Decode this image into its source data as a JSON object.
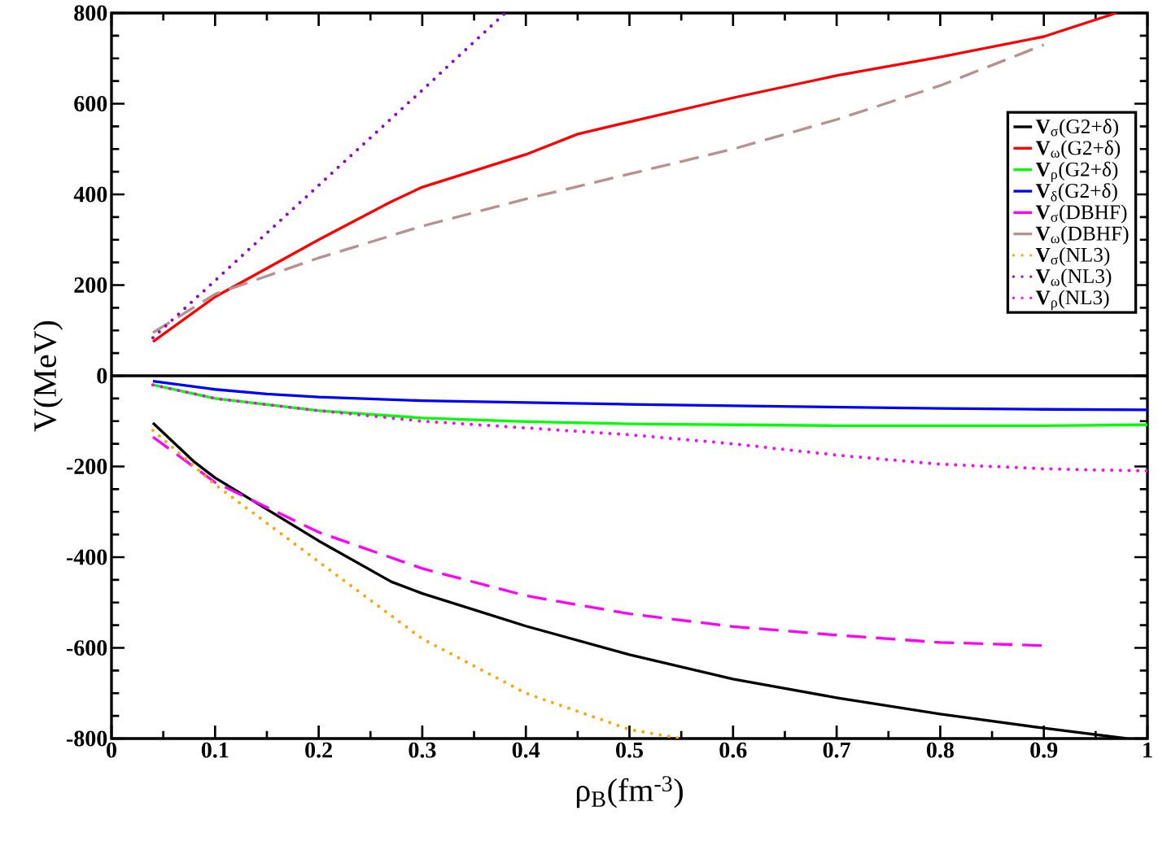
{
  "chart_data": {
    "type": "line",
    "xlabel": "ρ$_{B}$(fm$^{-3}$)",
    "ylabel": "V(MeV)",
    "xlim": [
      0,
      1
    ],
    "ylim": [
      -800,
      800
    ],
    "xticks": [
      0,
      0.1,
      0.2,
      0.3,
      0.4,
      0.5,
      0.6,
      0.7,
      0.8,
      0.9,
      1
    ],
    "yticks": [
      -800,
      -600,
      -400,
      -200,
      0,
      200,
      400,
      600,
      800
    ],
    "legend": "top right",
    "ref_lines": [
      {
        "axis": "y",
        "value": 0,
        "color": "#000000",
        "line_style": "solid"
      }
    ],
    "series": [
      {
        "name": "**V**$_{σ}$(G2+δ)",
        "color": "#000000",
        "line_style": "solid",
        "x": [
          0.04,
          0.08,
          0.1,
          0.2,
          0.27,
          0.3,
          0.4,
          0.5,
          0.6,
          0.7,
          0.8,
          0.9,
          0.98
        ],
        "values": [
          -104,
          -190,
          -225,
          -364,
          -454,
          -480,
          -552,
          -615,
          -669,
          -710,
          -746,
          -777,
          -800
        ]
      },
      {
        "name": "**V**$_{ω}$(G2+δ)",
        "color": "#ff0000",
        "line_style": "solid",
        "x": [
          0.04,
          0.1,
          0.2,
          0.27,
          0.3,
          0.4,
          0.45,
          0.5,
          0.6,
          0.7,
          0.8,
          0.9,
          0.97
        ],
        "values": [
          75,
          174,
          300,
          384,
          416,
          488,
          533,
          560,
          613,
          662,
          703,
          748,
          800
        ]
      },
      {
        "name": "**V**$_{ρ}$(G2+δ)",
        "color": "#00ff00",
        "line_style": "solid",
        "x": [
          0.04,
          0.1,
          0.2,
          0.3,
          0.4,
          0.5,
          0.6,
          0.7,
          0.8,
          0.9,
          1.0
        ],
        "values": [
          -20,
          -50,
          -77,
          -93,
          -101,
          -106,
          -108,
          -110,
          -110,
          -110,
          -108
        ]
      },
      {
        "name": "**V**$_{δ}$(G2+δ)",
        "color": "#0000ff",
        "line_style": "solid",
        "x": [
          0.04,
          0.1,
          0.15,
          0.2,
          0.3,
          0.4,
          0.5,
          0.6,
          0.7,
          0.8,
          0.9,
          1.0
        ],
        "values": [
          -12,
          -30,
          -40,
          -47,
          -55,
          -59,
          -63,
          -66,
          -69,
          -72,
          -74,
          -75
        ]
      },
      {
        "name": "**V**$_{σ}$(DBHF)",
        "color": "#ff00ff",
        "line_style": "dashed",
        "x": [
          0.04,
          0.1,
          0.2,
          0.3,
          0.4,
          0.5,
          0.6,
          0.7,
          0.8,
          0.9
        ],
        "values": [
          -135,
          -235,
          -345,
          -425,
          -485,
          -525,
          -553,
          -572,
          -588,
          -595
        ]
      },
      {
        "name": "**V**$_{ω}$(DBHF)",
        "color": "#bc8f8f",
        "line_style": "dashed",
        "x": [
          0.04,
          0.1,
          0.2,
          0.3,
          0.4,
          0.5,
          0.6,
          0.7,
          0.8,
          0.9
        ],
        "values": [
          95,
          180,
          260,
          330,
          390,
          445,
          500,
          565,
          640,
          730
        ]
      },
      {
        "name": "**V**$_{σ}$(NL3)",
        "color": "#ffa500",
        "line_style": "dotted",
        "x": [
          0.04,
          0.1,
          0.2,
          0.3,
          0.4,
          0.5,
          0.55
        ],
        "values": [
          -120,
          -240,
          -410,
          -580,
          -700,
          -780,
          -800
        ]
      },
      {
        "name": "**V**$_{ω}$(NL3)",
        "color": "#9400d3",
        "line_style": "dotted",
        "x": [
          0.04,
          0.1,
          0.2,
          0.3,
          0.38
        ],
        "values": [
          84,
          210,
          420,
          630,
          800
        ]
      },
      {
        "name": "**V**$_{ρ}$(NL3)",
        "color": "#ff00ff",
        "line_style": "dotted",
        "x": [
          0.04,
          0.1,
          0.2,
          0.3,
          0.4,
          0.5,
          0.6,
          0.7,
          0.8,
          0.9,
          1.0
        ],
        "values": [
          -20,
          -50,
          -77,
          -100,
          -115,
          -130,
          -150,
          -175,
          -195,
          -205,
          -210
        ]
      }
    ]
  }
}
